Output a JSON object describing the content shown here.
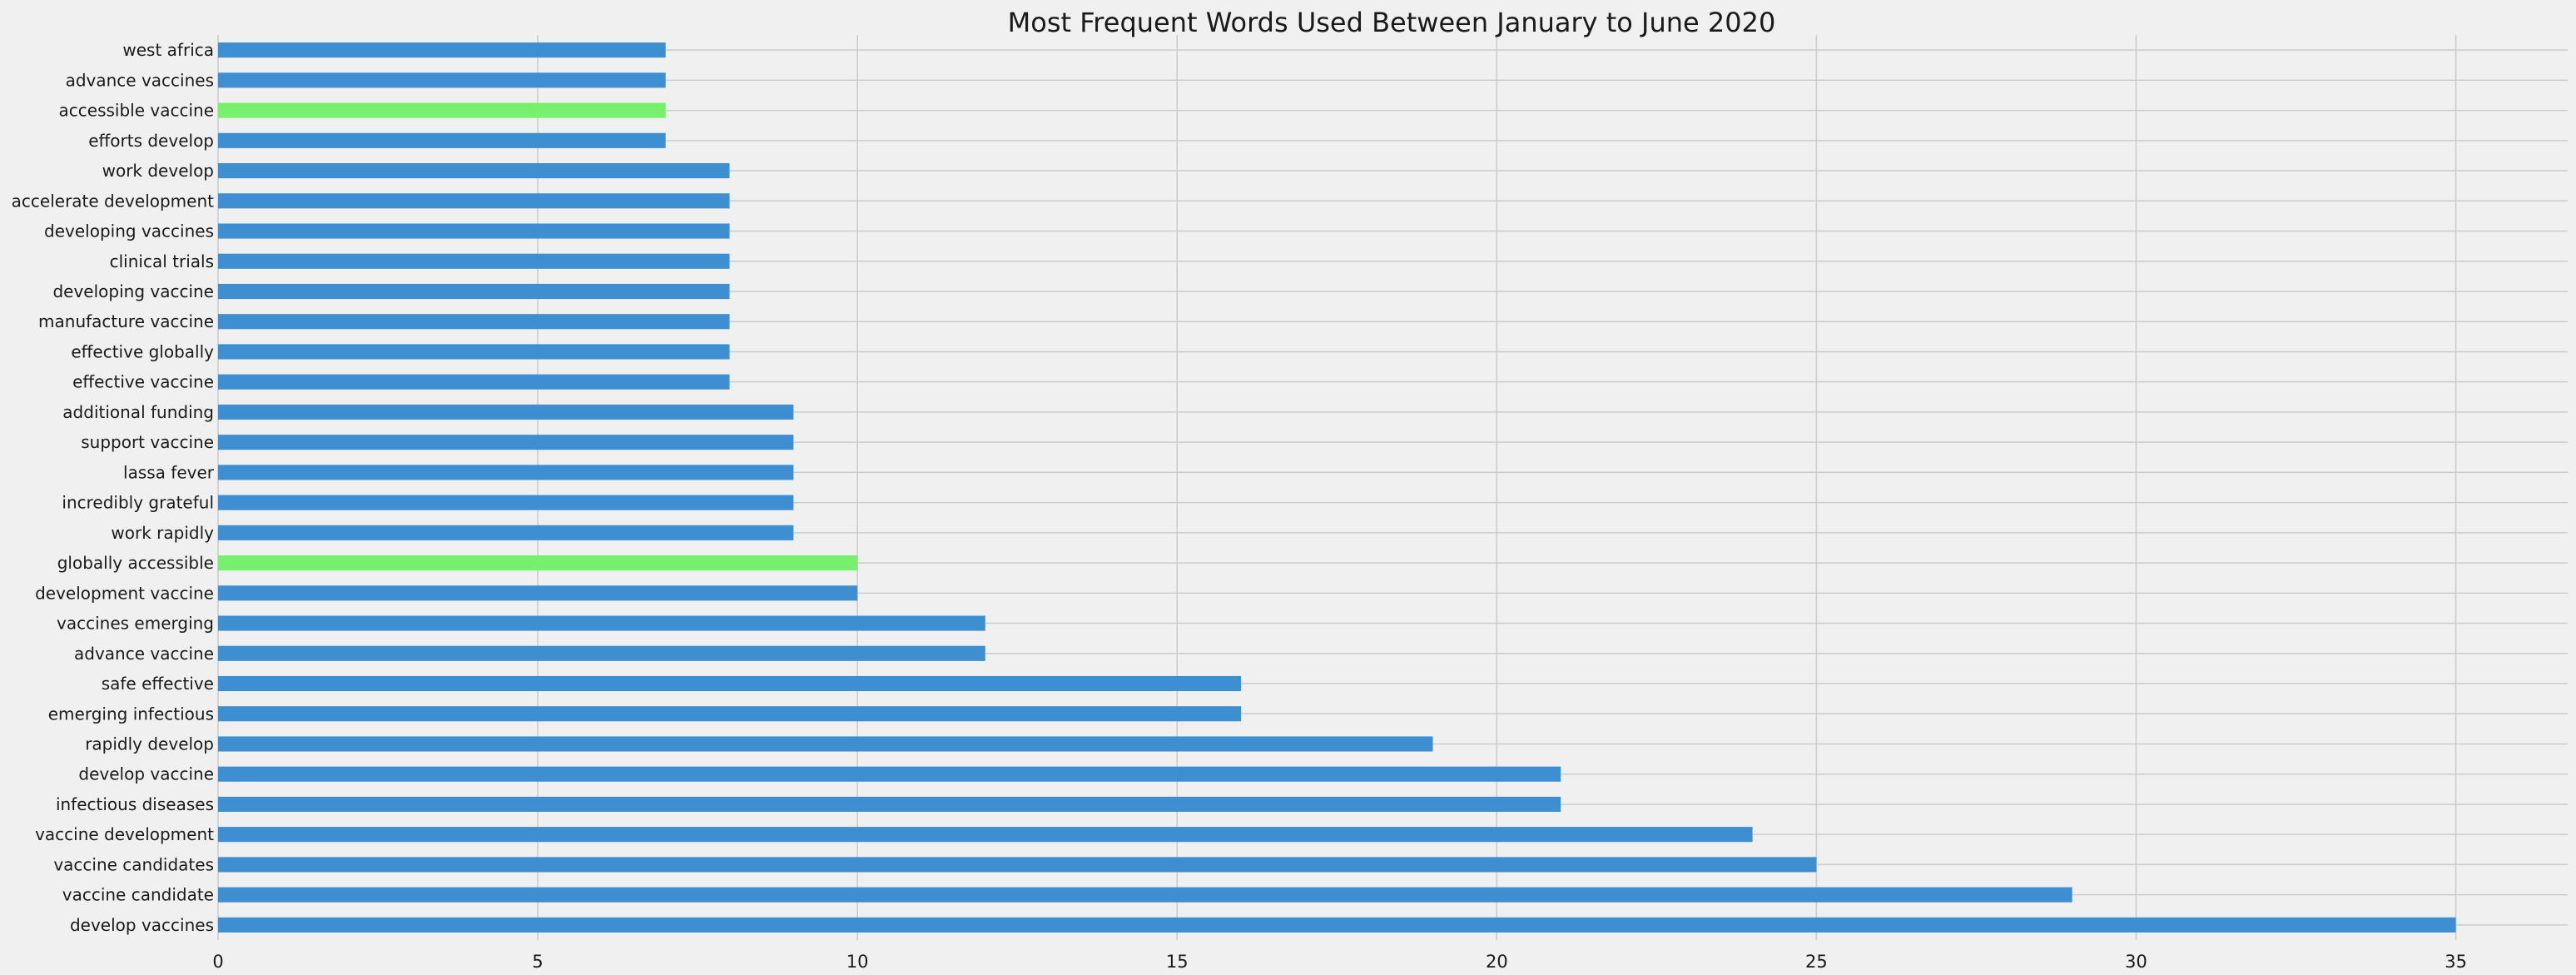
{
  "chart_data": {
    "type": "bar",
    "orientation": "horizontal",
    "title": "Most Frequent Words Used Between January to June 2020",
    "xlabel": "",
    "ylabel": "",
    "xlim": [
      0,
      36.75
    ],
    "xticks": [
      0,
      5,
      10,
      15,
      20,
      25,
      30,
      35
    ],
    "grid": true,
    "legend": "none",
    "colors": {
      "default": "#3e8fd1",
      "highlight": "#77f06d",
      "background": "#f0f0f0",
      "grid": "#cbcbcb",
      "text": "#1a1a1a"
    },
    "categories": [
      "develop vaccines",
      "vaccine candidate",
      "vaccine candidates",
      "vaccine development",
      "infectious diseases",
      "develop vaccine",
      "rapidly develop",
      "emerging infectious",
      "safe effective",
      "advance vaccine",
      "vaccines emerging",
      "development vaccine",
      "globally accessible",
      "work rapidly",
      "incredibly grateful",
      "lassa fever",
      "support vaccine",
      "additional funding",
      "effective vaccine",
      "effective globally",
      "manufacture vaccine",
      "developing vaccine",
      "clinical trials",
      "developing vaccines",
      "accelerate development",
      "work develop",
      "efforts develop",
      "accessible vaccine",
      "advance vaccines",
      "west africa"
    ],
    "values": [
      35,
      29,
      25,
      24,
      21,
      21,
      19,
      16,
      16,
      12,
      12,
      10,
      10,
      9,
      9,
      9,
      9,
      9,
      8,
      8,
      8,
      8,
      8,
      8,
      8,
      8,
      7,
      7,
      7,
      7
    ],
    "highlighted": [
      "globally accessible",
      "accessible vaccine"
    ]
  }
}
